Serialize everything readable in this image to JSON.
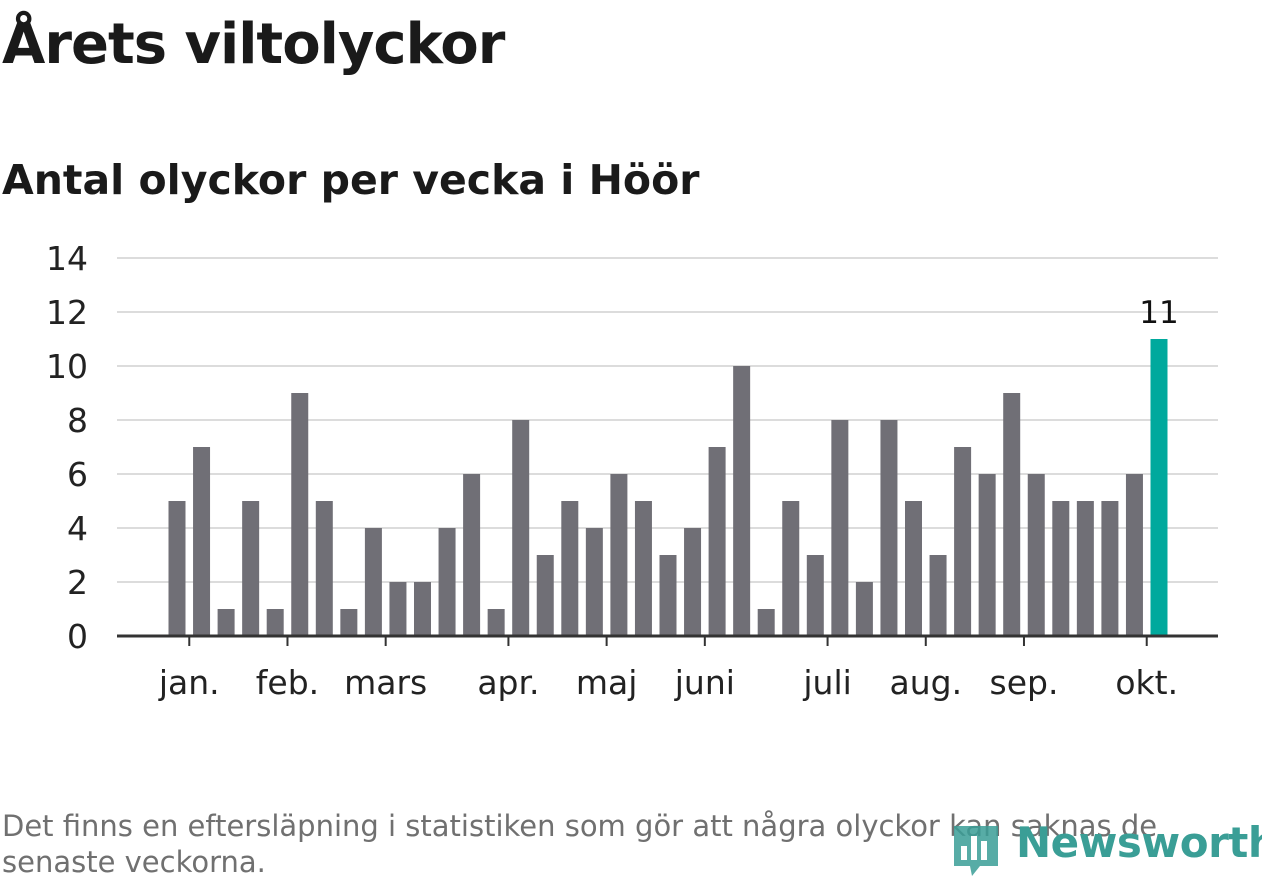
{
  "header": {
    "title": "Årets viltolyckor",
    "subtitle": "Antal olyckor per vecka i Höör"
  },
  "chart_data": {
    "type": "bar",
    "title": "Årets viltolyckor",
    "subtitle": "Antal olyckor per vecka i Höör",
    "xlabel": "",
    "ylabel": "",
    "ylim": [
      0,
      14
    ],
    "yticks": [
      0,
      2,
      4,
      6,
      8,
      10,
      12,
      14
    ],
    "grid": true,
    "values": [
      5,
      7,
      1,
      5,
      1,
      9,
      5,
      1,
      4,
      2,
      2,
      4,
      6,
      1,
      8,
      3,
      5,
      4,
      6,
      5,
      3,
      4,
      7,
      10,
      1,
      5,
      3,
      8,
      2,
      8,
      5,
      3,
      7,
      6,
      9,
      6,
      5,
      5,
      5,
      6,
      11
    ],
    "month_labels": [
      {
        "label": "jan.",
        "bar_index": 0.5
      },
      {
        "label": "feb.",
        "bar_index": 4.5
      },
      {
        "label": "mars",
        "bar_index": 8.5
      },
      {
        "label": "apr.",
        "bar_index": 13.5
      },
      {
        "label": "maj",
        "bar_index": 17.5
      },
      {
        "label": "juni",
        "bar_index": 21.5
      },
      {
        "label": "juli",
        "bar_index": 26.5
      },
      {
        "label": "aug.",
        "bar_index": 30.5
      },
      {
        "label": "sep.",
        "bar_index": 34.5
      },
      {
        "label": "okt.",
        "bar_index": 39.5
      }
    ],
    "highlight": {
      "index": 40,
      "label": "11"
    },
    "colors": {
      "bar": "#706f76",
      "highlight": "#00a99d",
      "grid": "#dcdcdc",
      "axis": "#333333"
    }
  },
  "footnote": "Det finns en eftersläpning i statistiken som gör att några olyckor kan saknas de senaste veckorna.",
  "logo": {
    "text": "Newsworthy",
    "color": "#3a9e96",
    "icon": "newsworthy-logo-icon"
  }
}
